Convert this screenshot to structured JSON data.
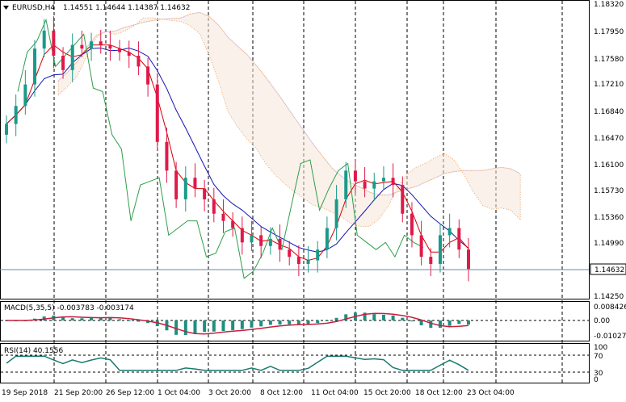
{
  "header": {
    "symbol": "EURUSD,H4",
    "ohlc": "1.14551 1.14644 1.14387 1.14632"
  },
  "price_axis": {
    "labels": [
      "1.18320",
      "1.17950",
      "1.17580",
      "1.17210",
      "1.16840",
      "1.16470",
      "1.16100",
      "1.15730",
      "1.15360",
      "1.14990",
      "1.14632",
      "1.14250"
    ],
    "current_price": "1.14632"
  },
  "time_axis": {
    "labels": [
      "19 Sep 2018",
      "21 Sep 20:00",
      "26 Sep 12:00",
      "1 Oct 04:00",
      "3 Oct 20:00",
      "8 Oct 12:00",
      "11 Oct 04:00",
      "15 Oct 20:00",
      "18 Oct 12:00",
      "23 Oct 04:00"
    ]
  },
  "macd": {
    "label": "MACD(5,35,5) -0.003783 -0.003174",
    "axis_labels": [
      "0.008426",
      "0.00",
      "-0.010273"
    ]
  },
  "rsi": {
    "label": "RSI(14) 40.1556",
    "axis_labels": [
      "100",
      "70",
      "30",
      "0"
    ]
  },
  "colors": {
    "bull": "#1a9a8a",
    "bear": "#e0194a",
    "tenkan": "#d40000",
    "kijun": "#1414b4",
    "chikou": "#2e9e4a",
    "cloud_a": "#f0a060",
    "cloud_b": "#c8b0dc",
    "macd_hist": "#1f8f80",
    "macd_signal": "#c81e3c",
    "rsi_line": "#1a7a70",
    "price_line": "#6a8aa8"
  },
  "chart_data": {
    "type": "candlestick",
    "series": [
      {
        "name": "price",
        "values": [
          1.1665,
          1.169,
          1.172,
          1.177,
          1.1795,
          1.176,
          1.174,
          1.1775,
          1.177,
          1.178,
          1.1775,
          1.177,
          1.1765,
          1.176,
          1.1745,
          1.172,
          1.164,
          1.16,
          1.156,
          1.159,
          1.1575,
          1.156,
          1.154,
          1.153,
          1.152,
          1.15,
          1.151,
          1.1495,
          1.1505,
          1.149,
          1.148,
          1.147,
          1.1475,
          1.149,
          1.152,
          1.156,
          1.16,
          1.1585,
          1.1575,
          1.1585,
          1.159,
          1.158,
          1.154,
          1.151,
          1.148,
          1.147,
          1.151,
          1.152,
          1.149,
          1.1463
        ]
      }
    ],
    "xlabel": "",
    "ylabel": "",
    "ylim": [
      1.1425,
      1.1832
    ]
  }
}
